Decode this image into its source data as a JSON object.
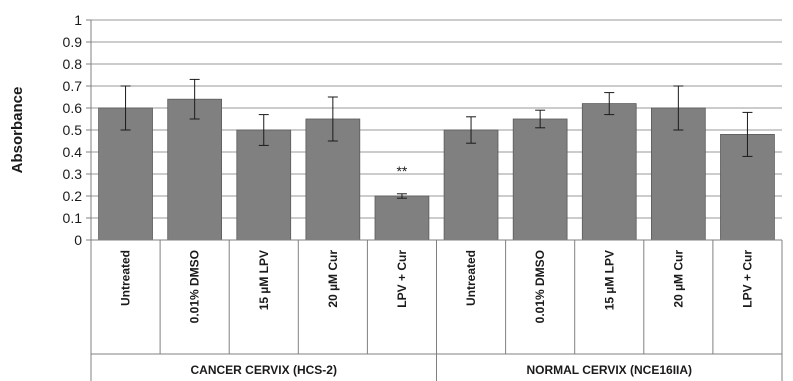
{
  "chart_data": {
    "type": "bar",
    "ylabel": "Absorbance",
    "ylim": [
      0,
      1
    ],
    "yticks": [
      "0",
      "0.1",
      "0.2",
      "0.3",
      "0.4",
      "0.5",
      "0.6",
      "0.7",
      "0.8",
      "0.9",
      "1"
    ],
    "grid": true,
    "bar_color": "#808080",
    "categories": [
      "Untreated",
      "0.01% DMSO",
      "15 µM LPV",
      "20 µM Cur",
      "LPV + Cur",
      "Untreated",
      "0.01% DMSO",
      "15 µM LPV",
      "20 µM Cur",
      "LPV + Cur"
    ],
    "values": [
      0.6,
      0.64,
      0.5,
      0.55,
      0.2,
      0.5,
      0.55,
      0.62,
      0.6,
      0.48
    ],
    "error": [
      0.1,
      0.09,
      0.07,
      0.1,
      0.01,
      0.06,
      0.04,
      0.05,
      0.1,
      0.1
    ],
    "groups": [
      {
        "label": "CANCER CERVIX (HCS-2)",
        "start": 0,
        "end": 4
      },
      {
        "label": "NORMAL CERVIX (NCE16IIA)",
        "start": 5,
        "end": 9
      }
    ],
    "annotations": [
      {
        "index": 4,
        "text": "**"
      }
    ]
  }
}
